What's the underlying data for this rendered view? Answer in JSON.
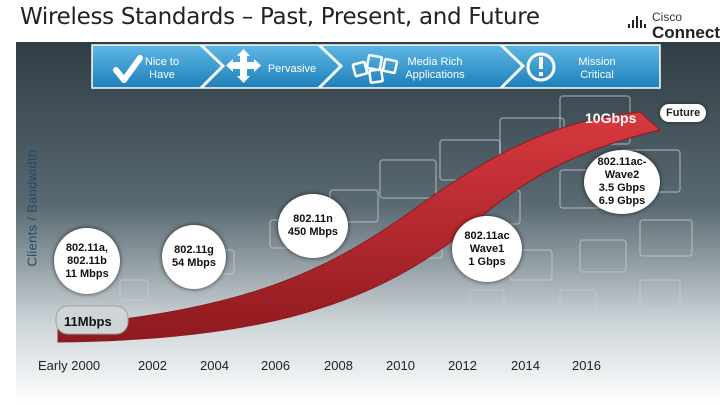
{
  "title": "Wireless Standards – Past, Present, and Future",
  "logo": {
    "line1": "Cisco",
    "line2": "Connect"
  },
  "y_axis_label": "Clients / Bandwidth",
  "stages": [
    {
      "label": "Nice to\nHave",
      "icon": "checkmark-icon"
    },
    {
      "label": "Pervasive",
      "icon": "four-arrows-icon"
    },
    {
      "label": "Media Rich\nApplications",
      "icon": "media-boxes-icon"
    },
    {
      "label": "Mission\nCritical",
      "icon": "alert-icon"
    }
  ],
  "future_label": "Future",
  "top_bandwidth": "10Gbps",
  "base_bandwidth": "11Mbps",
  "standards": [
    {
      "label": "802.11a,\n802.11b\n11 Mbps"
    },
    {
      "label": "802.11g\n54 Mbps"
    },
    {
      "label": "802.11n\n450 Mbps"
    },
    {
      "label": "802.11ac\nWave1\n1 Gbps"
    },
    {
      "label": "802.11ac-\nWave2\n3.5 Gbps\n6.9 Gbps"
    }
  ],
  "x_axis_years": [
    "Early 2000",
    "2002",
    "2004",
    "2006",
    "2008",
    "2010",
    "2012",
    "2014",
    "2016"
  ],
  "colors": {
    "chevron": "#3a9bd0",
    "curve": "#c0272d",
    "title": "#222222"
  }
}
